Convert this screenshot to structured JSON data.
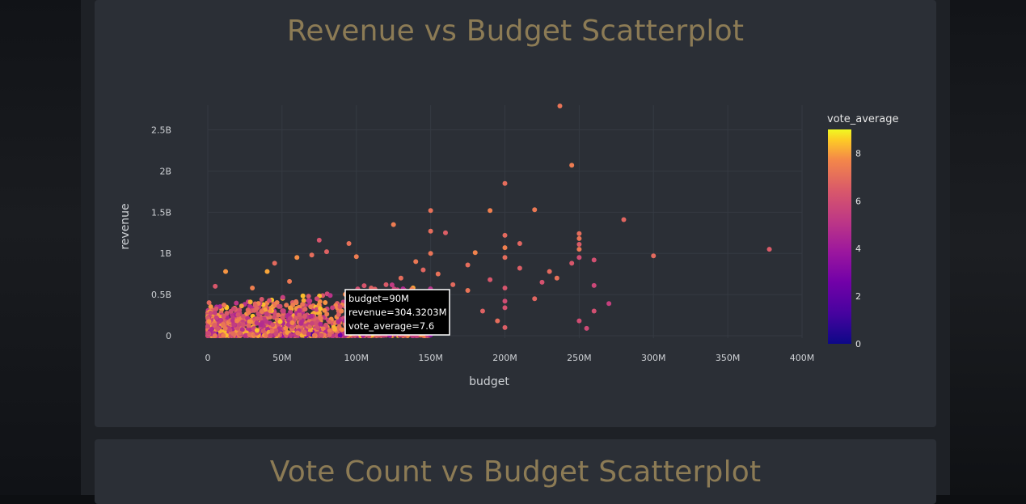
{
  "page": {
    "chart1_title": "Revenue vs Budget Scatterplot",
    "chart2_title": "Vote Count vs Budget Scatterplot"
  },
  "colors": {
    "title": "#8c7b55",
    "card": "#2b2f36",
    "axis_text": "#cfd2d6"
  },
  "chart_data": {
    "type": "scatter",
    "title": "Revenue vs Budget Scatterplot",
    "xlabel": "budget",
    "ylabel": "revenue",
    "xlim": [
      0,
      400
    ],
    "ylim": [
      0,
      2.8
    ],
    "x_unit": "M",
    "y_unit": "B",
    "x_ticks": [
      "0",
      "50M",
      "100M",
      "150M",
      "200M",
      "250M",
      "300M",
      "350M",
      "400M"
    ],
    "y_ticks": [
      "0",
      "0.5B",
      "1B",
      "1.5B",
      "2B",
      "2.5B"
    ],
    "grid": true,
    "colorbar": {
      "title": "vote_average",
      "ticks": [
        "0",
        "2",
        "4",
        "6",
        "8"
      ],
      "range": [
        0,
        9
      ]
    },
    "tooltip": {
      "lines": [
        "budget=90M",
        "revenue=304.3203M",
        "vote_average=7.6"
      ]
    },
    "points": [
      {
        "x": 237,
        "y": 2.79,
        "c": 7.2
      },
      {
        "x": 245,
        "y": 2.07,
        "c": 7.4
      },
      {
        "x": 200,
        "y": 1.85,
        "c": 7.0
      },
      {
        "x": 190,
        "y": 1.52,
        "c": 7.5
      },
      {
        "x": 150,
        "y": 1.52,
        "c": 7.1
      },
      {
        "x": 220,
        "y": 1.53,
        "c": 7.3
      },
      {
        "x": 280,
        "y": 1.41,
        "c": 6.8
      },
      {
        "x": 125,
        "y": 1.35,
        "c": 7.4
      },
      {
        "x": 150,
        "y": 1.27,
        "c": 7.0
      },
      {
        "x": 160,
        "y": 1.25,
        "c": 6.6
      },
      {
        "x": 200,
        "y": 1.22,
        "c": 6.9
      },
      {
        "x": 250,
        "y": 1.24,
        "c": 7.0
      },
      {
        "x": 250,
        "y": 1.18,
        "c": 7.2
      },
      {
        "x": 210,
        "y": 1.12,
        "c": 6.8
      },
      {
        "x": 250,
        "y": 1.11,
        "c": 6.5
      },
      {
        "x": 250,
        "y": 1.05,
        "c": 7.3
      },
      {
        "x": 200,
        "y": 1.07,
        "c": 7.5
      },
      {
        "x": 378,
        "y": 1.05,
        "c": 6.5
      },
      {
        "x": 300,
        "y": 0.97,
        "c": 6.9
      },
      {
        "x": 250,
        "y": 0.95,
        "c": 6.0
      },
      {
        "x": 260,
        "y": 0.92,
        "c": 6.1
      },
      {
        "x": 245,
        "y": 0.88,
        "c": 6.4
      },
      {
        "x": 180,
        "y": 1.01,
        "c": 7.6
      },
      {
        "x": 150,
        "y": 1.0,
        "c": 7.2
      },
      {
        "x": 75,
        "y": 1.16,
        "c": 6.3
      },
      {
        "x": 95,
        "y": 1.12,
        "c": 7.1
      },
      {
        "x": 80,
        "y": 1.02,
        "c": 6.7
      },
      {
        "x": 70,
        "y": 0.98,
        "c": 7.0
      },
      {
        "x": 100,
        "y": 0.96,
        "c": 7.4
      },
      {
        "x": 60,
        "y": 0.95,
        "c": 7.8
      },
      {
        "x": 45,
        "y": 0.88,
        "c": 6.9
      },
      {
        "x": 12,
        "y": 0.78,
        "c": 7.9
      },
      {
        "x": 40,
        "y": 0.78,
        "c": 8.1
      },
      {
        "x": 140,
        "y": 0.9,
        "c": 7.3
      },
      {
        "x": 175,
        "y": 0.86,
        "c": 7.0
      },
      {
        "x": 200,
        "y": 0.95,
        "c": 7.0
      },
      {
        "x": 210,
        "y": 0.82,
        "c": 6.6
      },
      {
        "x": 230,
        "y": 0.78,
        "c": 6.9
      },
      {
        "x": 235,
        "y": 0.7,
        "c": 7.1
      },
      {
        "x": 260,
        "y": 0.61,
        "c": 5.8
      },
      {
        "x": 225,
        "y": 0.65,
        "c": 6.2
      },
      {
        "x": 190,
        "y": 0.68,
        "c": 6.4
      },
      {
        "x": 200,
        "y": 0.58,
        "c": 6.3
      },
      {
        "x": 200,
        "y": 0.42,
        "c": 6.0
      },
      {
        "x": 200,
        "y": 0.34,
        "c": 6.2
      },
      {
        "x": 220,
        "y": 0.45,
        "c": 6.8
      },
      {
        "x": 270,
        "y": 0.39,
        "c": 5.5
      },
      {
        "x": 260,
        "y": 0.3,
        "c": 6.1
      },
      {
        "x": 250,
        "y": 0.18,
        "c": 6.0
      },
      {
        "x": 255,
        "y": 0.09,
        "c": 5.9
      },
      {
        "x": 200,
        "y": 0.1,
        "c": 6.6
      },
      {
        "x": 195,
        "y": 0.18,
        "c": 7.0
      },
      {
        "x": 185,
        "y": 0.3,
        "c": 6.7
      },
      {
        "x": 175,
        "y": 0.55,
        "c": 7.2
      },
      {
        "x": 165,
        "y": 0.62,
        "c": 6.9
      },
      {
        "x": 155,
        "y": 0.75,
        "c": 7.1
      },
      {
        "x": 145,
        "y": 0.8,
        "c": 6.8
      },
      {
        "x": 130,
        "y": 0.7,
        "c": 7.0
      },
      {
        "x": 120,
        "y": 0.62,
        "c": 6.5
      },
      {
        "x": 110,
        "y": 0.58,
        "c": 6.7
      },
      {
        "x": 90,
        "y": 0.3,
        "c": 7.6
      },
      {
        "x": 5,
        "y": 0.6,
        "c": 6.4
      },
      {
        "x": 30,
        "y": 0.58,
        "c": 7.5
      },
      {
        "x": 55,
        "y": 0.66,
        "c": 7.3
      }
    ],
    "cluster": {
      "x_range": [
        0,
        150
      ],
      "y_max": 0.55,
      "density": "dense"
    }
  }
}
